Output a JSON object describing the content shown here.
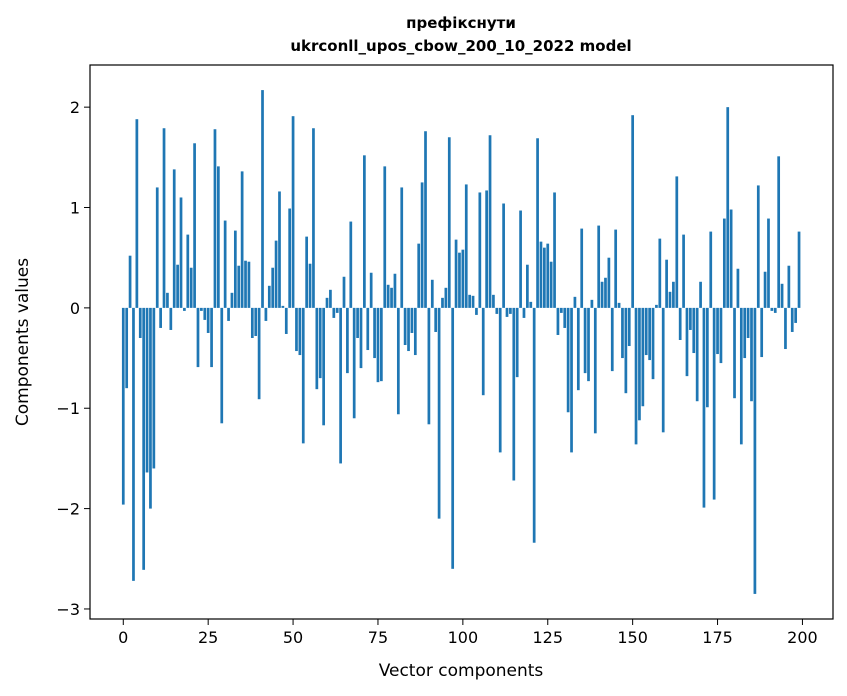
{
  "chart_data": {
    "type": "bar",
    "title": "префіксну­ти",
    "title_lines": [
      "префікснути",
      "ukrconll_upos_cbow_200_10_2022 model"
    ],
    "xlabel": "Vector components",
    "ylabel": "Components values",
    "xlim": [
      -9.8,
      209
    ],
    "ylim": [
      -3.1,
      2.42
    ],
    "x_ticks": [
      0,
      25,
      50,
      75,
      100,
      125,
      150,
      175,
      200
    ],
    "y_ticks": [
      -3,
      -2,
      -1,
      0,
      1,
      2
    ],
    "y_tick_labels": [
      "−3",
      "−2",
      "−1",
      "0",
      "1",
      "2"
    ],
    "grid": false,
    "bar_color": "#1f77b4",
    "values": [
      -1.96,
      -0.8,
      0.52,
      -2.72,
      1.88,
      -0.3,
      -2.61,
      -1.64,
      -2.0,
      -1.6,
      1.2,
      -0.2,
      1.79,
      0.15,
      -0.22,
      1.38,
      0.43,
      1.1,
      -0.03,
      0.73,
      0.4,
      1.64,
      -0.59,
      -0.03,
      -0.12,
      -0.25,
      -0.59,
      1.78,
      1.41,
      -1.15,
      0.87,
      -0.13,
      0.15,
      0.77,
      0.42,
      1.36,
      0.47,
      0.46,
      -0.3,
      -0.28,
      -0.91,
      2.17,
      -0.13,
      0.22,
      0.4,
      0.67,
      1.16,
      0.02,
      -0.26,
      0.99,
      1.91,
      -0.43,
      -0.47,
      -1.35,
      0.71,
      0.44,
      1.79,
      -0.81,
      -0.7,
      -1.17,
      0.1,
      0.18,
      -0.1,
      -0.05,
      -1.55,
      0.31,
      -0.65,
      0.86,
      -1.1,
      -0.3,
      -0.6,
      1.52,
      -0.42,
      0.35,
      -0.5,
      -0.74,
      -0.73,
      1.41,
      0.23,
      0.2,
      0.34,
      -1.06,
      1.2,
      -0.37,
      -0.43,
      -0.25,
      -0.47,
      0.64,
      1.25,
      1.76,
      -1.16,
      0.28,
      -0.24,
      -2.1,
      0.1,
      0.2,
      1.7,
      -2.6,
      0.68,
      0.55,
      0.58,
      1.23,
      0.13,
      0.12,
      -0.07,
      1.15,
      -0.87,
      1.17,
      1.72,
      0.13,
      -0.06,
      -1.44,
      1.04,
      -0.09,
      -0.06,
      -1.72,
      -0.69,
      0.97,
      -0.1,
      0.43,
      0.06,
      -2.34,
      1.69,
      0.66,
      0.6,
      0.64,
      0.46,
      1.15,
      -0.27,
      -0.05,
      -0.2,
      -1.04,
      -1.44,
      0.11,
      -0.82,
      0.79,
      -0.65,
      -0.73,
      0.08,
      -1.25,
      0.82,
      0.26,
      0.3,
      0.5,
      -0.63,
      0.78,
      0.05,
      -0.5,
      -0.85,
      -0.38,
      1.92,
      -1.36,
      -1.12,
      -0.98,
      -0.47,
      -0.52,
      -0.71,
      0.03,
      0.69,
      -1.24,
      0.48,
      0.16,
      0.26,
      1.31,
      -0.32,
      0.73,
      -0.68,
      -0.22,
      -0.45,
      -0.93,
      0.26,
      -1.99,
      -0.99,
      0.76,
      -1.91,
      -0.46,
      -0.55,
      0.89,
      2.0,
      0.98,
      -0.9,
      0.39,
      -1.36,
      -0.5,
      -0.3,
      -0.93,
      -2.85,
      1.22,
      -0.49,
      0.36,
      0.89,
      -0.03,
      -0.05,
      1.51,
      0.24,
      -0.41,
      0.42,
      -0.24,
      -0.15,
      0.76
    ]
  }
}
